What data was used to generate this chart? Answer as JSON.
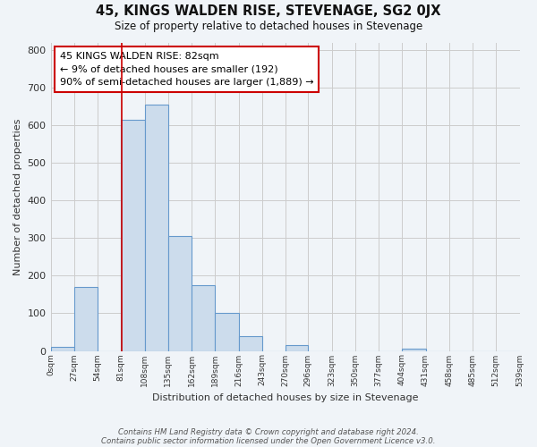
{
  "title": "45, KINGS WALDEN RISE, STEVENAGE, SG2 0JX",
  "subtitle": "Size of property relative to detached houses in Stevenage",
  "xlabel": "Distribution of detached houses by size in Stevenage",
  "ylabel": "Number of detached properties",
  "bar_edges": [
    0,
    27,
    54,
    81,
    108,
    135,
    162,
    189,
    216,
    243,
    270,
    296,
    323,
    350,
    377,
    404,
    431,
    458,
    485,
    512,
    539
  ],
  "bar_heights": [
    10,
    170,
    0,
    615,
    655,
    305,
    175,
    100,
    40,
    0,
    15,
    0,
    0,
    0,
    0,
    5,
    0,
    0,
    0,
    0
  ],
  "bar_color": "#ccdcec",
  "bar_edge_color": "#6699cc",
  "vline_x": 82,
  "vline_color": "#cc0000",
  "annotation_line1": "45 KINGS WALDEN RISE: 82sqm",
  "annotation_line2": "← 9% of detached houses are smaller (192)",
  "annotation_line3": "90% of semi-detached houses are larger (1,889) →",
  "annotation_box_color": "white",
  "annotation_box_edge_color": "#cc0000",
  "ylim": [
    0,
    820
  ],
  "tick_labels": [
    "0sqm",
    "27sqm",
    "54sqm",
    "81sqm",
    "108sqm",
    "135sqm",
    "162sqm",
    "189sqm",
    "216sqm",
    "243sqm",
    "270sqm",
    "296sqm",
    "323sqm",
    "350sqm",
    "377sqm",
    "404sqm",
    "431sqm",
    "458sqm",
    "485sqm",
    "512sqm",
    "539sqm"
  ],
  "footnote1": "Contains HM Land Registry data © Crown copyright and database right 2024.",
  "footnote2": "Contains public sector information licensed under the Open Government Licence v3.0.",
  "grid_color": "#cccccc",
  "background_color": "#f0f4f8"
}
